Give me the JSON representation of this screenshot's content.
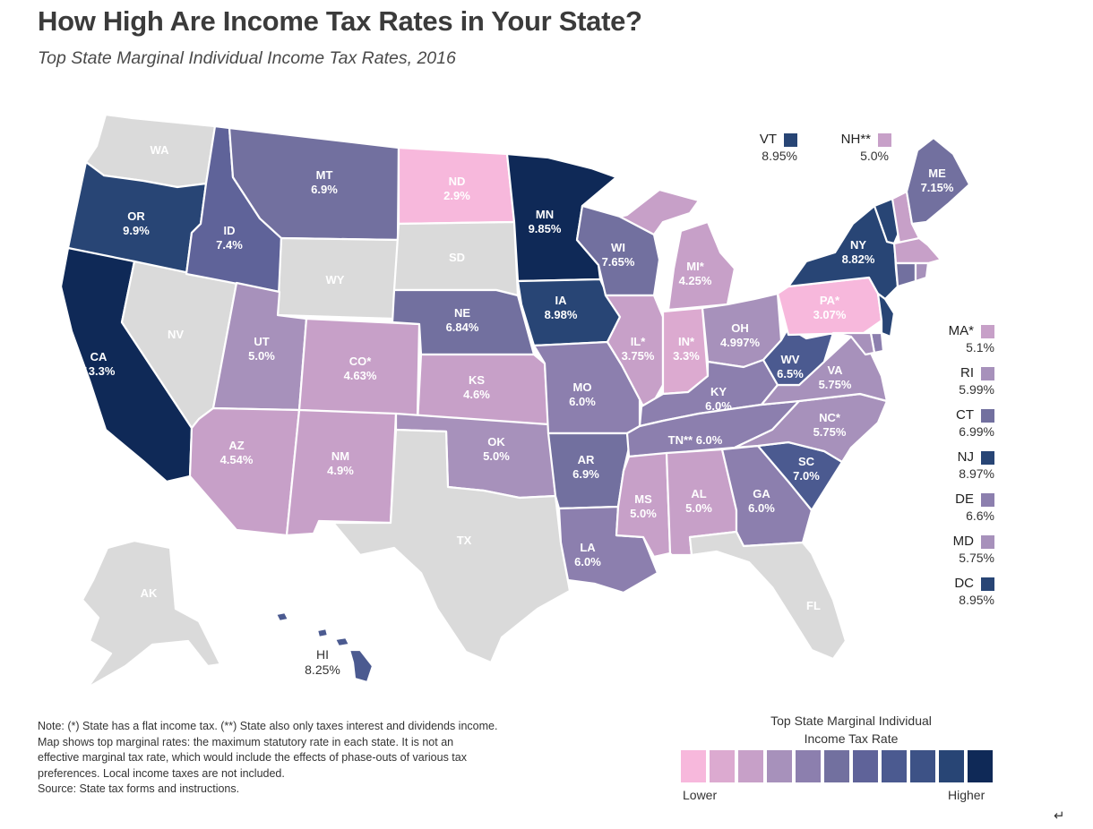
{
  "title": "How High Are Income Tax Rates in Your State?",
  "subtitle": "Top State Marginal Individual Income Tax Rates, 2016",
  "colors": {
    "no_tax": "#dadada",
    "scale": [
      "#f7b8dc",
      "#dcaad0",
      "#c7a0c8",
      "#a791bb",
      "#8c7fae",
      "#72709f",
      "#5f6399",
      "#4b5a90",
      "#3d5286",
      "#284575",
      "#0f2957"
    ]
  },
  "states": {
    "WA": {
      "abbr": "WA",
      "rate": ""
    },
    "OR": {
      "abbr": "OR",
      "rate": "9.9%"
    },
    "CA": {
      "abbr": "CA",
      "rate": "13.3%"
    },
    "NV": {
      "abbr": "NV",
      "rate": ""
    },
    "ID": {
      "abbr": "ID",
      "rate": "7.4%"
    },
    "MT": {
      "abbr": "MT",
      "rate": "6.9%"
    },
    "WY": {
      "abbr": "WY",
      "rate": ""
    },
    "UT": {
      "abbr": "UT",
      "rate": "5.0%"
    },
    "AZ": {
      "abbr": "AZ",
      "rate": "4.54%"
    },
    "CO": {
      "abbr": "CO*",
      "rate": "4.63%"
    },
    "NM": {
      "abbr": "NM",
      "rate": "4.9%"
    },
    "ND": {
      "abbr": "ND",
      "rate": "2.9%"
    },
    "SD": {
      "abbr": "SD",
      "rate": ""
    },
    "NE": {
      "abbr": "NE",
      "rate": "6.84%"
    },
    "KS": {
      "abbr": "KS",
      "rate": "4.6%"
    },
    "OK": {
      "abbr": "OK",
      "rate": "5.0%"
    },
    "TX": {
      "abbr": "TX",
      "rate": ""
    },
    "MN": {
      "abbr": "MN",
      "rate": "9.85%"
    },
    "IA": {
      "abbr": "IA",
      "rate": "8.98%"
    },
    "MO": {
      "abbr": "MO",
      "rate": "6.0%"
    },
    "AR": {
      "abbr": "AR",
      "rate": "6.9%"
    },
    "LA": {
      "abbr": "LA",
      "rate": "6.0%"
    },
    "WI": {
      "abbr": "WI",
      "rate": "7.65%"
    },
    "IL": {
      "abbr": "IL*",
      "rate": "3.75%"
    },
    "MI": {
      "abbr": "MI*",
      "rate": "4.25%"
    },
    "IN": {
      "abbr": "IN*",
      "rate": "3.3%"
    },
    "OH": {
      "abbr": "OH",
      "rate": "4.997%"
    },
    "KY": {
      "abbr": "KY",
      "rate": "6.0%"
    },
    "TN": {
      "abbr": "TN**",
      "rate": "6.0%"
    },
    "MS": {
      "abbr": "MS",
      "rate": "5.0%"
    },
    "AL": {
      "abbr": "AL",
      "rate": "5.0%"
    },
    "GA": {
      "abbr": "GA",
      "rate": "6.0%"
    },
    "FL": {
      "abbr": "FL",
      "rate": ""
    },
    "SC": {
      "abbr": "SC",
      "rate": "7.0%"
    },
    "NC": {
      "abbr": "NC*",
      "rate": "5.75%"
    },
    "VA": {
      "abbr": "VA",
      "rate": "5.75%"
    },
    "WV": {
      "abbr": "WV",
      "rate": "6.5%"
    },
    "PA": {
      "abbr": "PA*",
      "rate": "3.07%"
    },
    "NY": {
      "abbr": "NY",
      "rate": "8.82%"
    },
    "ME": {
      "abbr": "ME",
      "rate": "7.15%"
    },
    "AK": {
      "abbr": "AK",
      "rate": ""
    },
    "HI": {
      "abbr": "HI",
      "rate": "8.25%"
    }
  },
  "small_states": [
    {
      "abbr": "VT",
      "rate": "8.95%",
      "color": "#284575"
    },
    {
      "abbr": "NH**",
      "rate": "5.0%",
      "color": "#c7a0c8"
    },
    {
      "abbr": "MA*",
      "rate": "5.1%",
      "color": "#c7a0c8"
    },
    {
      "abbr": "RI",
      "rate": "5.99%",
      "color": "#a791bb"
    },
    {
      "abbr": "CT",
      "rate": "6.99%",
      "color": "#72709f"
    },
    {
      "abbr": "NJ",
      "rate": "8.97%",
      "color": "#284575"
    },
    {
      "abbr": "DE",
      "rate": "6.6%",
      "color": "#8c7fae"
    },
    {
      "abbr": "MD",
      "rate": "5.75%",
      "color": "#a791bb"
    },
    {
      "abbr": "DC",
      "rate": "8.95%",
      "color": "#284575"
    }
  ],
  "note": {
    "line1": "Note: (*) State has a flat income tax. (**) State also only taxes interest and dividends income.",
    "line2": "Map shows top marginal rates: the maximum statutory rate in each state. It is not an",
    "line3": "effective marginal tax rate, which would include the effects of phase-outs of various tax",
    "line4": "preferences. Local income taxes are not included.",
    "source": "Source: State tax forms and instructions."
  },
  "legend": {
    "title_line1": "Top State Marginal Individual",
    "title_line2": "Income Tax Rate",
    "low_label": "Lower",
    "high_label": "Higher"
  },
  "enter_glyph": "↵"
}
